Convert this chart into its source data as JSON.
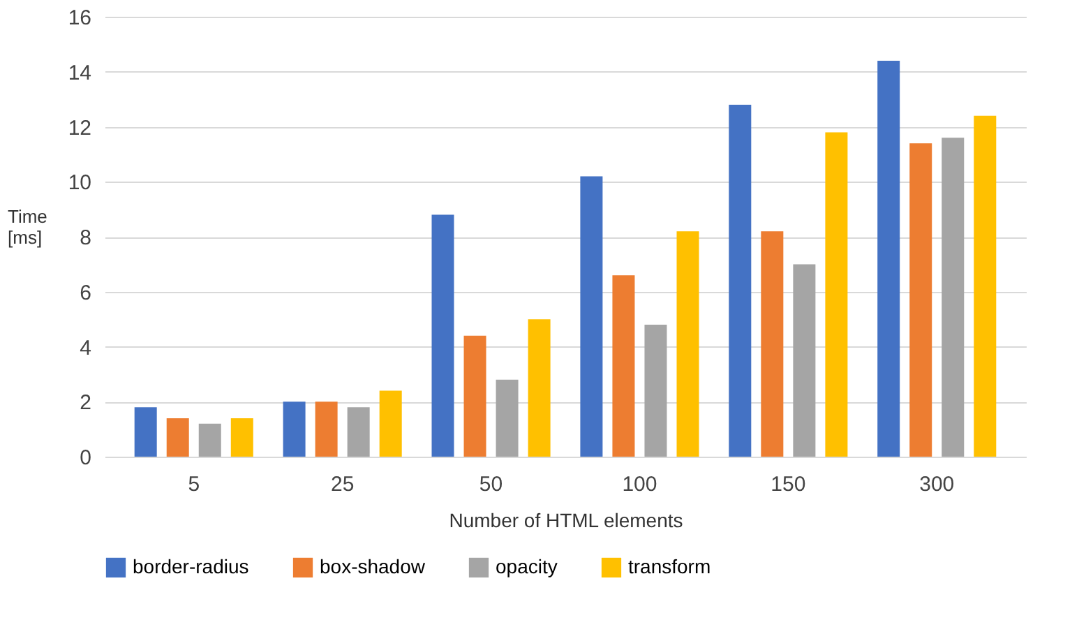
{
  "chart_data": {
    "type": "bar",
    "xlabel": "Number of HTML elements",
    "ylabel": "Time [ms]",
    "categories": [
      "5",
      "25",
      "50",
      "100",
      "150",
      "300"
    ],
    "series": [
      {
        "name": "border-radius",
        "color": "#4472c4",
        "values": [
          1.8,
          2.0,
          8.8,
          10.2,
          12.8,
          14.4
        ]
      },
      {
        "name": "box-shadow",
        "color": "#ed7d31",
        "values": [
          1.4,
          2.0,
          4.4,
          6.6,
          8.2,
          11.4
        ]
      },
      {
        "name": "opacity",
        "color": "#a5a5a5",
        "values": [
          1.2,
          1.8,
          2.8,
          4.8,
          7.0,
          11.6
        ]
      },
      {
        "name": "transform",
        "color": "#ffc000",
        "values": [
          1.4,
          2.4,
          5.0,
          8.2,
          11.8,
          12.4
        ]
      }
    ],
    "ylim": [
      0,
      16
    ],
    "yticks": [
      0,
      2,
      4,
      6,
      8,
      10,
      12,
      14,
      16
    ],
    "grid": "y",
    "legend": "bottom"
  }
}
